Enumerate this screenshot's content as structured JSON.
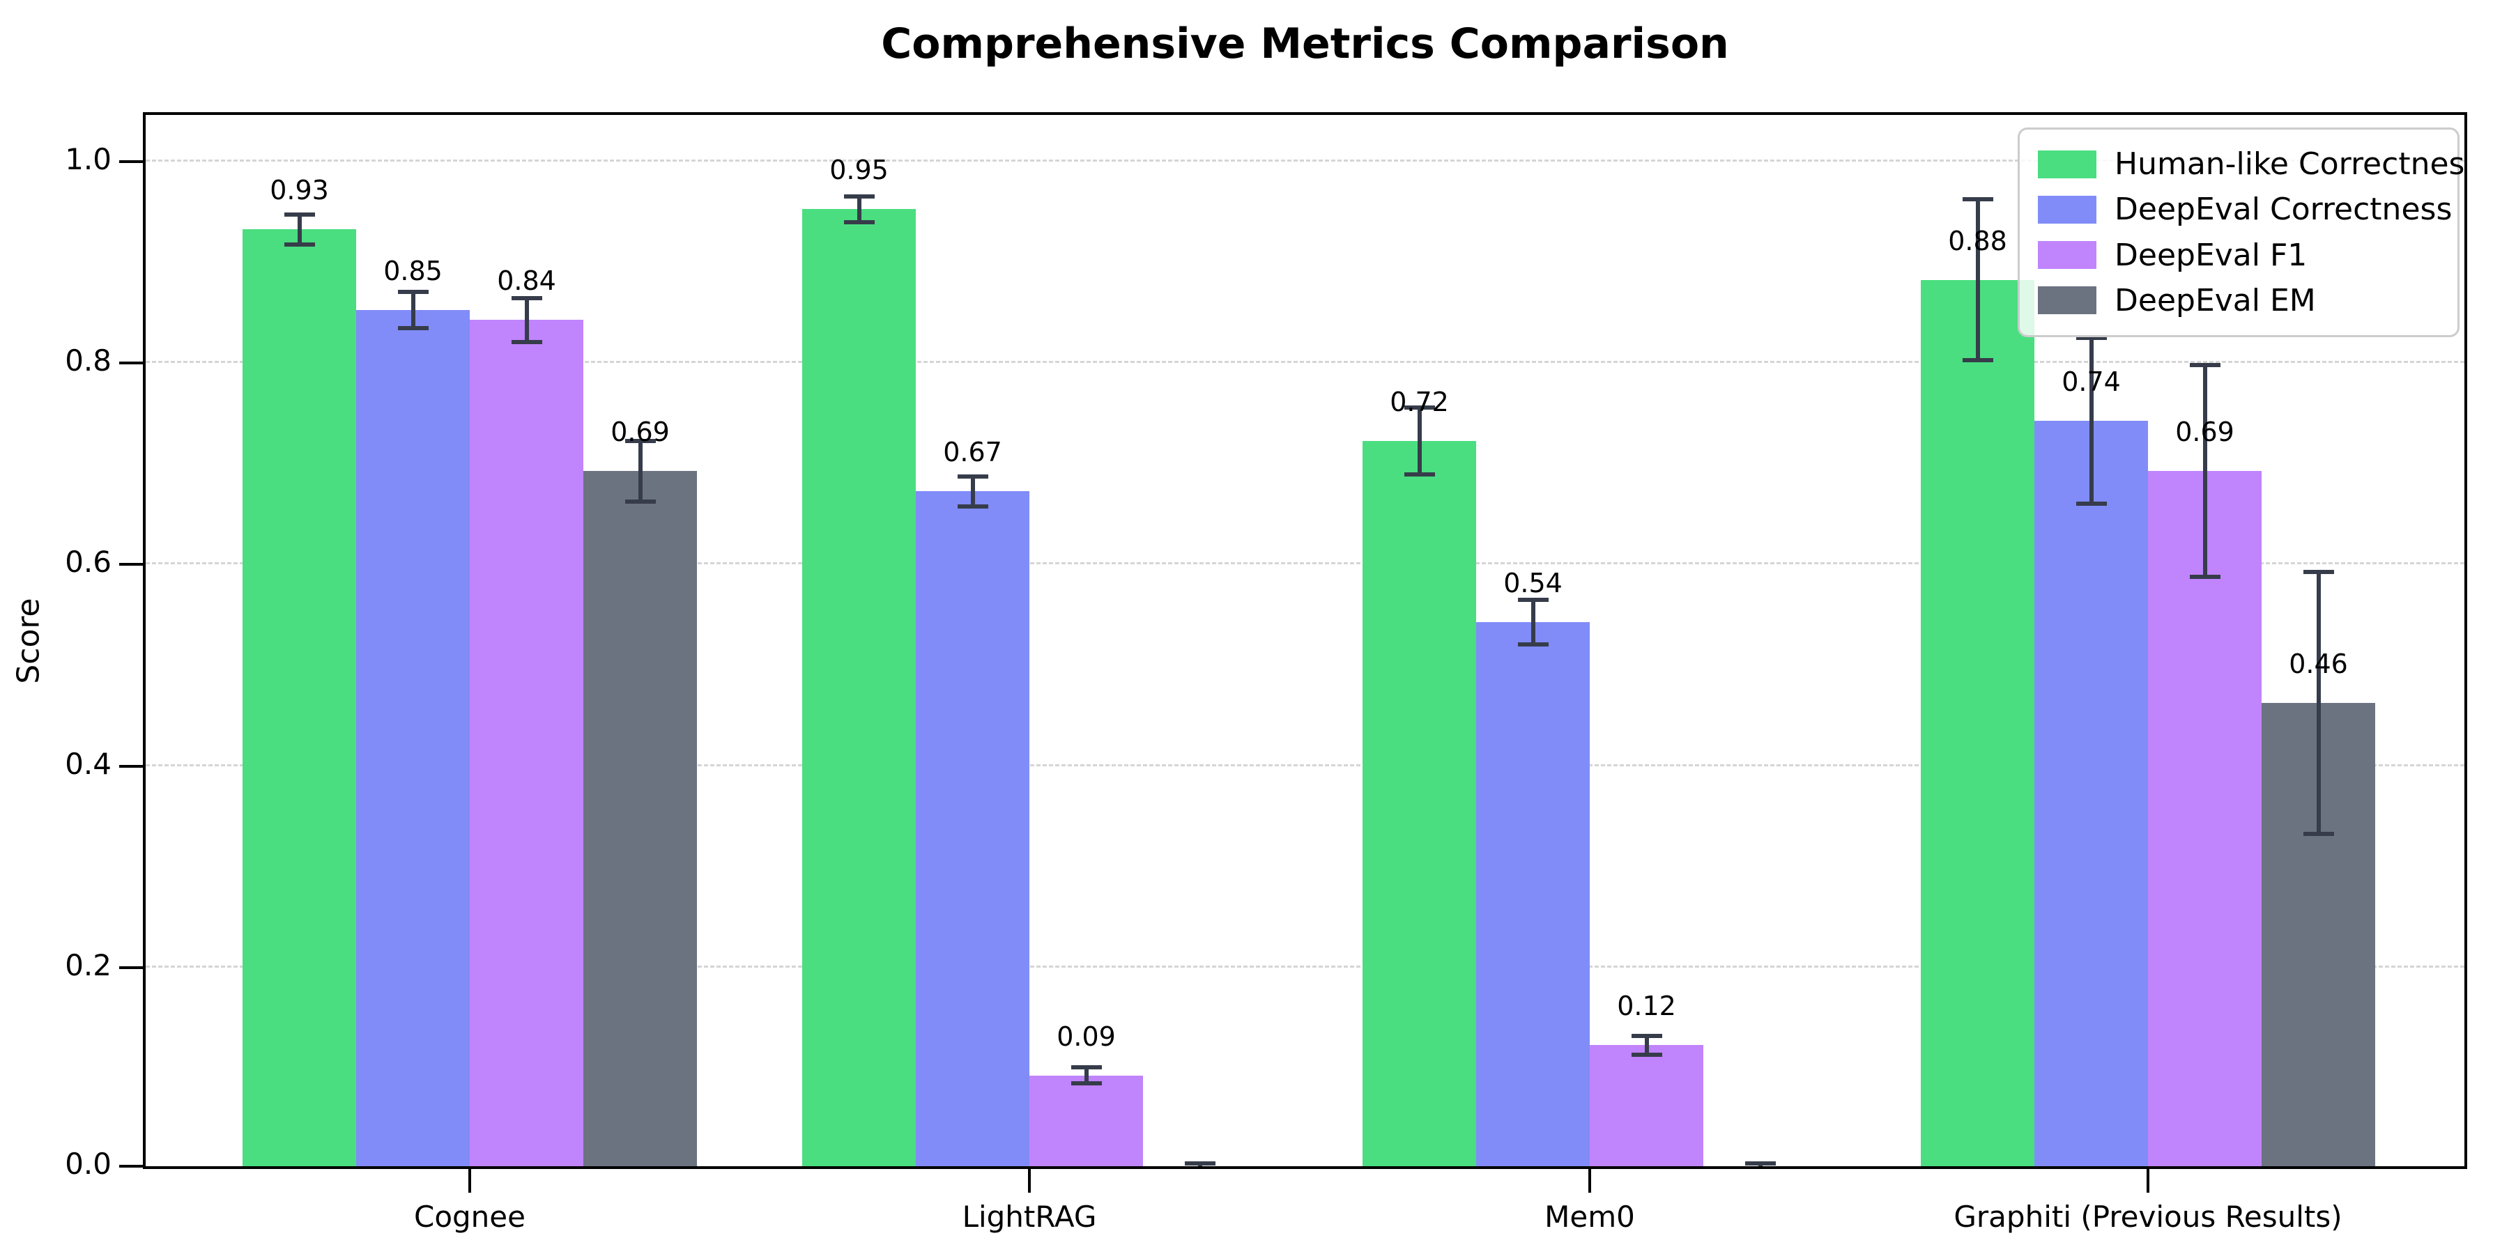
{
  "title": "Comprehensive Metrics Comparison",
  "chart_data": {
    "type": "bar",
    "title": "Comprehensive Metrics Comparison",
    "xlabel": "",
    "ylabel": "Score",
    "categories": [
      "Cognee",
      "LightRAG",
      "Mem0",
      "Graphiti (Previous Results)"
    ],
    "series": [
      {
        "name": "Human-like Correctness",
        "color": "#4ade80",
        "values": [
          0.93,
          0.95,
          0.72,
          0.88
        ],
        "errors": [
          0.015,
          0.013,
          0.033,
          0.08
        ],
        "labels": [
          "0.93",
          "0.95",
          "0.72",
          "0.88"
        ]
      },
      {
        "name": "DeepEval Correctness",
        "color": "#818cf8",
        "values": [
          0.85,
          0.67,
          0.54,
          0.74
        ],
        "errors": [
          0.018,
          0.015,
          0.022,
          0.082
        ],
        "labels": [
          "0.85",
          "0.67",
          "0.54",
          "0.74"
        ]
      },
      {
        "name": "DeepEval F1",
        "color": "#c084fc",
        "values": [
          0.84,
          0.09,
          0.12,
          0.69
        ],
        "errors": [
          0.022,
          0.008,
          0.009,
          0.105
        ],
        "labels": [
          "0.84",
          "0.09",
          "0.12",
          "0.69"
        ]
      },
      {
        "name": "DeepEval EM",
        "color": "#6b7280",
        "values": [
          0.69,
          0.0,
          0.0,
          0.46
        ],
        "errors": [
          0.03,
          0.003,
          0.003,
          0.13
        ],
        "labels": [
          "0.69",
          "",
          "",
          "0.46"
        ]
      }
    ],
    "ytick_values": [
      0.0,
      0.2,
      0.4,
      0.6,
      0.8,
      1.0
    ],
    "ytick_labels": [
      "0.0",
      "0.2",
      "0.4",
      "0.6",
      "0.8",
      "1.0"
    ],
    "ylim": [
      0,
      1.049
    ],
    "grid": "horizontal-dashed",
    "legend_position": "upper right",
    "error_bar_color": "#363c4a",
    "grid_color": "#d5d5d5"
  }
}
